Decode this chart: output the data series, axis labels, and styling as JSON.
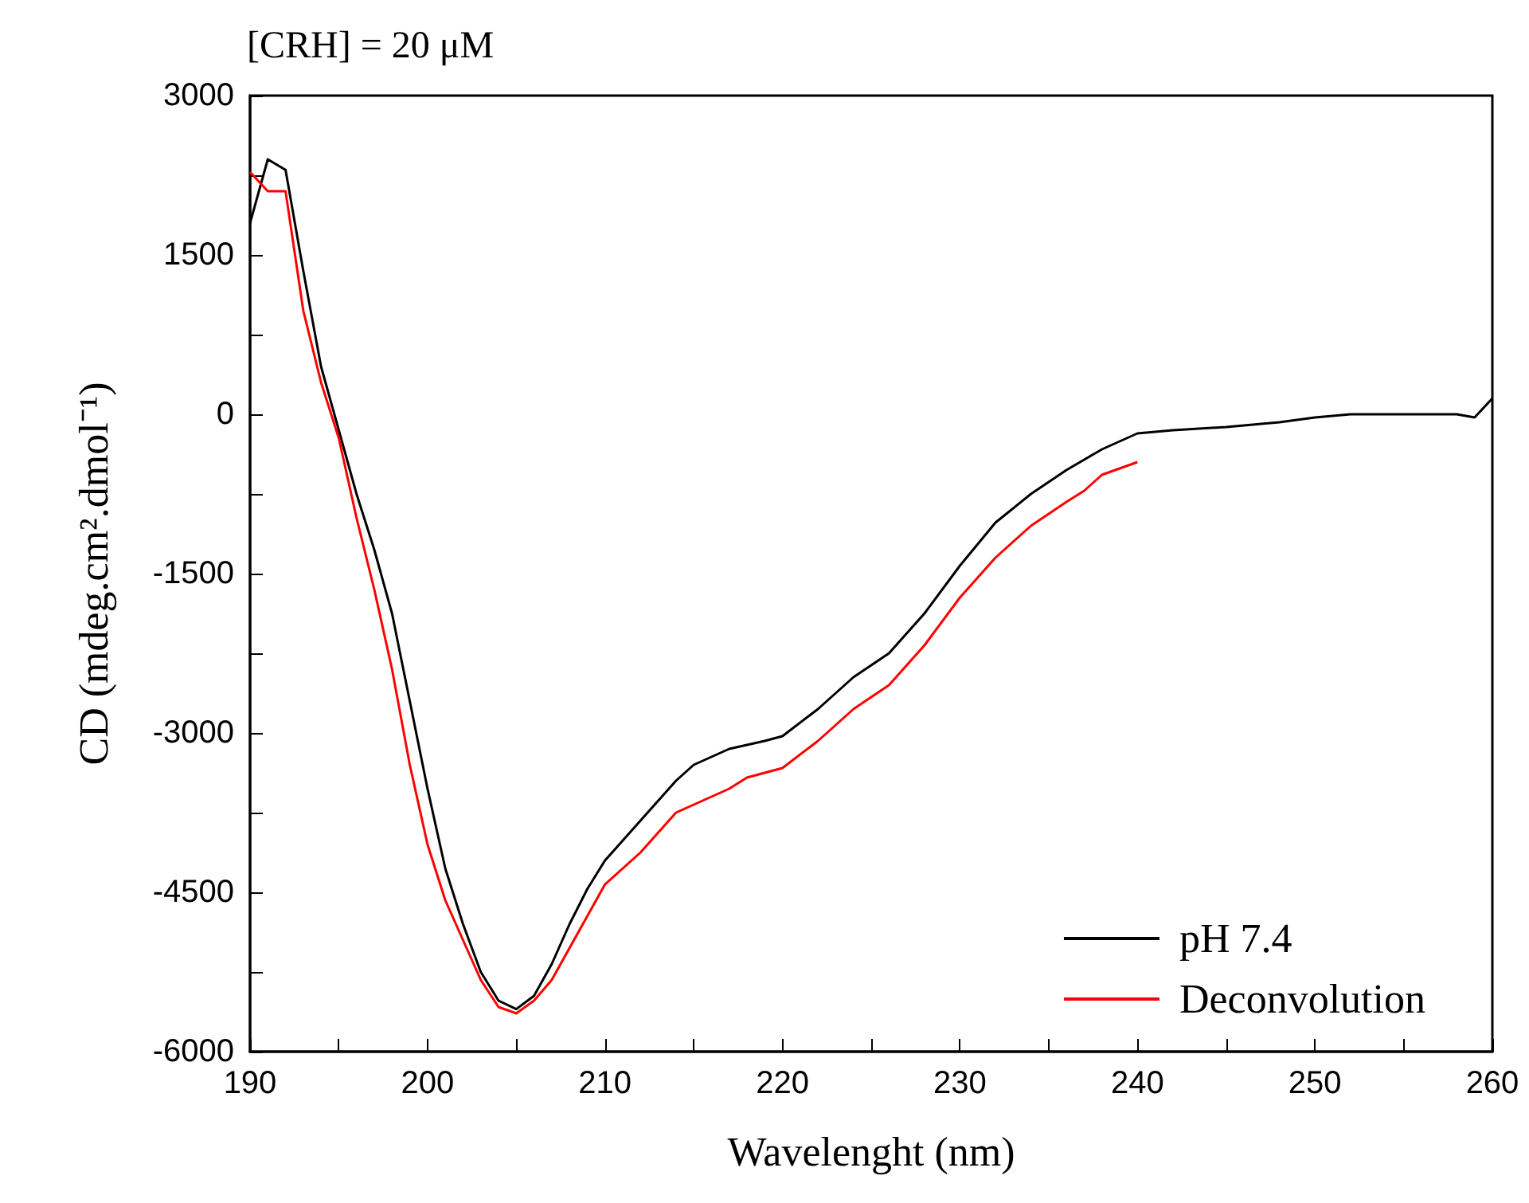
{
  "chart_data": {
    "type": "line",
    "title": "[CRH] = 20 μM",
    "xlabel": "Wavelenght (nm)",
    "ylabel": "CD (mdeg.cm².dmol⁻¹)",
    "xlim": [
      190,
      260
    ],
    "xticks": [
      190,
      {
        "value": 195,
        "label": null
      },
      200,
      {
        "value": 205,
        "label": null
      },
      210,
      {
        "value": 215,
        "label": null
      },
      220,
      {
        "value": 225,
        "label": null
      },
      230,
      {
        "value": 235,
        "label": null
      },
      240,
      {
        "value": 245,
        "label": null
      },
      250,
      {
        "value": 255,
        "label": null
      },
      260
    ],
    "ylim": [
      -6000,
      3000
    ],
    "yticks": [
      -6000,
      {
        "value": -5250,
        "label": null
      },
      -4500,
      {
        "value": -3750,
        "label": null
      },
      -3000,
      {
        "value": -2250,
        "label": null
      },
      -1500,
      {
        "value": -750,
        "label": null
      },
      0,
      {
        "value": 750,
        "label": null
      },
      1500,
      {
        "value": 2250,
        "label": null
      },
      3000
    ],
    "grid": false,
    "legend": "bottom right",
    "marker": "none",
    "line_style": "solid",
    "series": [
      {
        "name": "pH 7.4",
        "color": "#000000",
        "x": [
          190,
          191,
          192,
          193,
          194,
          195,
          196,
          197,
          198,
          199,
          200,
          201,
          202,
          203,
          204,
          205,
          206,
          207,
          208,
          209,
          210,
          212,
          214,
          215,
          217,
          219,
          220,
          222,
          224,
          226,
          228,
          230,
          232,
          234,
          236,
          238,
          240,
          242,
          245,
          248,
          250,
          252,
          255,
          258,
          259,
          260
        ],
        "values": [
          1800,
          2400,
          2300,
          1350,
          450,
          -150,
          -750,
          -1275,
          -1875,
          -2700,
          -3525,
          -4275,
          -4800,
          -5250,
          -5520,
          -5600,
          -5475,
          -5175,
          -4800,
          -4470,
          -4200,
          -3825,
          -3450,
          -3300,
          -3150,
          -3075,
          -3030,
          -2775,
          -2475,
          -2250,
          -1875,
          -1425,
          -1020,
          -750,
          -525,
          -330,
          -180,
          -150,
          -120,
          -75,
          -30,
          0,
          0,
          0,
          -30,
          150
        ]
      },
      {
        "name": "Deconvolution",
        "color": "#ff0000",
        "x": [
          190,
          191,
          192,
          193,
          194,
          195,
          196,
          197,
          198,
          199,
          200,
          201,
          202,
          203,
          204,
          205,
          206,
          207,
          208,
          209,
          210,
          212,
          214,
          215,
          217,
          218,
          220,
          222,
          224,
          226,
          228,
          230,
          232,
          234,
          236,
          237,
          238,
          240
        ],
        "values": [
          2280,
          2100,
          2100,
          975,
          300,
          -225,
          -975,
          -1650,
          -2400,
          -3300,
          -4050,
          -4575,
          -4950,
          -5325,
          -5580,
          -5640,
          -5520,
          -5325,
          -5025,
          -4725,
          -4425,
          -4125,
          -3750,
          -3675,
          -3525,
          -3420,
          -3330,
          -3075,
          -2775,
          -2550,
          -2175,
          -1725,
          -1350,
          -1050,
          -825,
          -720,
          -570,
          -450
        ]
      }
    ]
  }
}
